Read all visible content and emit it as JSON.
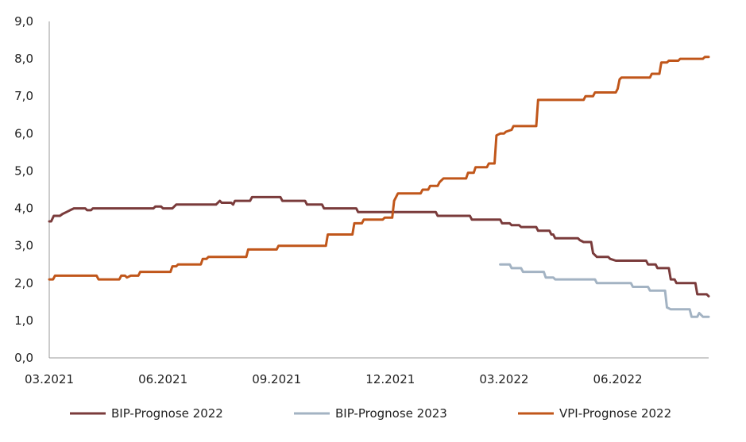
{
  "chart_data": {
    "type": "line",
    "title": "",
    "xlabel": "",
    "ylabel": "",
    "ylim": [
      0,
      9
    ],
    "grid": false,
    "legend_position": "bottom",
    "y_ticks": [
      "0,0",
      "1,0",
      "2,0",
      "3,0",
      "4,0",
      "5,0",
      "6,0",
      "7,0",
      "8,0",
      "9,0"
    ],
    "x_ticks": [
      {
        "label": "03.2021",
        "t": 0
      },
      {
        "label": "06.2021",
        "t": 3
      },
      {
        "label": "09.2021",
        "t": 6
      },
      {
        "label": "12.2021",
        "t": 9
      },
      {
        "label": "03.2022",
        "t": 12
      },
      {
        "label": "06.2022",
        "t": 15
      }
    ],
    "x_range_months": [
      0,
      17.4
    ],
    "series": [
      {
        "name": "BIP-Prognose 2022",
        "color": "#7a3b3b",
        "points": [
          [
            0.0,
            3.65
          ],
          [
            0.05,
            3.65
          ],
          [
            0.12,
            3.8
          ],
          [
            0.28,
            3.8
          ],
          [
            0.35,
            3.85
          ],
          [
            0.45,
            3.9
          ],
          [
            0.55,
            3.95
          ],
          [
            0.65,
            4.0
          ],
          [
            0.95,
            4.0
          ],
          [
            1.0,
            3.95
          ],
          [
            1.1,
            3.95
          ],
          [
            1.15,
            4.0
          ],
          [
            2.75,
            4.0
          ],
          [
            2.8,
            4.05
          ],
          [
            2.95,
            4.05
          ],
          [
            3.0,
            4.0
          ],
          [
            3.25,
            4.0
          ],
          [
            3.35,
            4.1
          ],
          [
            4.4,
            4.1
          ],
          [
            4.5,
            4.2
          ],
          [
            4.55,
            4.15
          ],
          [
            4.8,
            4.15
          ],
          [
            4.85,
            4.1
          ],
          [
            4.9,
            4.2
          ],
          [
            5.3,
            4.2
          ],
          [
            5.35,
            4.3
          ],
          [
            6.1,
            4.3
          ],
          [
            6.15,
            4.2
          ],
          [
            6.75,
            4.2
          ],
          [
            6.8,
            4.1
          ],
          [
            7.2,
            4.1
          ],
          [
            7.25,
            4.0
          ],
          [
            8.1,
            4.0
          ],
          [
            8.15,
            3.9
          ],
          [
            10.2,
            3.9
          ],
          [
            10.25,
            3.8
          ],
          [
            11.1,
            3.8
          ],
          [
            11.15,
            3.7
          ],
          [
            11.9,
            3.7
          ],
          [
            11.95,
            3.6
          ],
          [
            12.15,
            3.6
          ],
          [
            12.2,
            3.55
          ],
          [
            12.4,
            3.55
          ],
          [
            12.45,
            3.5
          ],
          [
            12.85,
            3.5
          ],
          [
            12.9,
            3.4
          ],
          [
            13.2,
            3.4
          ],
          [
            13.25,
            3.3
          ],
          [
            13.3,
            3.3
          ],
          [
            13.35,
            3.2
          ],
          [
            13.95,
            3.2
          ],
          [
            14.0,
            3.15
          ],
          [
            14.1,
            3.1
          ],
          [
            14.3,
            3.1
          ],
          [
            14.35,
            2.8
          ],
          [
            14.45,
            2.7
          ],
          [
            14.75,
            2.7
          ],
          [
            14.8,
            2.65
          ],
          [
            14.95,
            2.6
          ],
          [
            15.75,
            2.6
          ],
          [
            15.8,
            2.5
          ],
          [
            16.0,
            2.5
          ],
          [
            16.05,
            2.4
          ],
          [
            16.35,
            2.4
          ],
          [
            16.4,
            2.1
          ],
          [
            16.5,
            2.1
          ],
          [
            16.55,
            2.0
          ],
          [
            17.05,
            2.0
          ],
          [
            17.1,
            1.7
          ],
          [
            17.35,
            1.7
          ],
          [
            17.4,
            1.65
          ]
        ]
      },
      {
        "name": "BIP-Prognose 2023",
        "color": "#a3b3c3",
        "points": [
          [
            11.9,
            2.5
          ],
          [
            12.15,
            2.5
          ],
          [
            12.2,
            2.4
          ],
          [
            12.45,
            2.4
          ],
          [
            12.5,
            2.3
          ],
          [
            13.05,
            2.3
          ],
          [
            13.1,
            2.15
          ],
          [
            13.3,
            2.15
          ],
          [
            13.35,
            2.1
          ],
          [
            14.4,
            2.1
          ],
          [
            14.45,
            2.0
          ],
          [
            15.35,
            2.0
          ],
          [
            15.4,
            1.9
          ],
          [
            15.8,
            1.9
          ],
          [
            15.85,
            1.8
          ],
          [
            16.25,
            1.8
          ],
          [
            16.3,
            1.35
          ],
          [
            16.4,
            1.3
          ],
          [
            16.9,
            1.3
          ],
          [
            16.95,
            1.1
          ],
          [
            17.1,
            1.1
          ],
          [
            17.15,
            1.2
          ],
          [
            17.25,
            1.1
          ],
          [
            17.4,
            1.1
          ]
        ]
      },
      {
        "name": "VPI-Prognose 2022",
        "color": "#c0561a",
        "points": [
          [
            0.0,
            2.1
          ],
          [
            0.1,
            2.1
          ],
          [
            0.15,
            2.2
          ],
          [
            1.25,
            2.2
          ],
          [
            1.3,
            2.1
          ],
          [
            1.85,
            2.1
          ],
          [
            1.9,
            2.2
          ],
          [
            2.0,
            2.2
          ],
          [
            2.05,
            2.15
          ],
          [
            2.15,
            2.2
          ],
          [
            2.35,
            2.2
          ],
          [
            2.4,
            2.3
          ],
          [
            3.2,
            2.3
          ],
          [
            3.25,
            2.45
          ],
          [
            3.35,
            2.45
          ],
          [
            3.4,
            2.5
          ],
          [
            4.0,
            2.5
          ],
          [
            4.05,
            2.65
          ],
          [
            4.15,
            2.65
          ],
          [
            4.2,
            2.7
          ],
          [
            5.2,
            2.7
          ],
          [
            5.25,
            2.9
          ],
          [
            6.0,
            2.9
          ],
          [
            6.05,
            3.0
          ],
          [
            7.3,
            3.0
          ],
          [
            7.35,
            3.3
          ],
          [
            8.0,
            3.3
          ],
          [
            8.05,
            3.6
          ],
          [
            8.25,
            3.6
          ],
          [
            8.3,
            3.7
          ],
          [
            8.8,
            3.7
          ],
          [
            8.85,
            3.75
          ],
          [
            9.05,
            3.75
          ],
          [
            9.1,
            4.2
          ],
          [
            9.2,
            4.4
          ],
          [
            9.8,
            4.4
          ],
          [
            9.85,
            4.5
          ],
          [
            10.0,
            4.5
          ],
          [
            10.05,
            4.6
          ],
          [
            10.25,
            4.6
          ],
          [
            10.3,
            4.7
          ],
          [
            10.4,
            4.8
          ],
          [
            11.0,
            4.8
          ],
          [
            11.05,
            4.95
          ],
          [
            11.2,
            4.95
          ],
          [
            11.25,
            5.1
          ],
          [
            11.55,
            5.1
          ],
          [
            11.6,
            5.2
          ],
          [
            11.75,
            5.2
          ],
          [
            11.8,
            5.95
          ],
          [
            11.9,
            6.0
          ],
          [
            12.0,
            6.0
          ],
          [
            12.05,
            6.05
          ],
          [
            12.2,
            6.1
          ],
          [
            12.25,
            6.2
          ],
          [
            12.85,
            6.2
          ],
          [
            12.9,
            6.9
          ],
          [
            14.1,
            6.9
          ],
          [
            14.15,
            7.0
          ],
          [
            14.35,
            7.0
          ],
          [
            14.4,
            7.1
          ],
          [
            14.95,
            7.1
          ],
          [
            15.0,
            7.2
          ],
          [
            15.05,
            7.45
          ],
          [
            15.1,
            7.5
          ],
          [
            15.85,
            7.5
          ],
          [
            15.9,
            7.6
          ],
          [
            16.1,
            7.6
          ],
          [
            16.15,
            7.9
          ],
          [
            16.3,
            7.9
          ],
          [
            16.35,
            7.95
          ],
          [
            16.6,
            7.95
          ],
          [
            16.65,
            8.0
          ],
          [
            17.25,
            8.0
          ],
          [
            17.3,
            8.05
          ],
          [
            17.4,
            8.05
          ]
        ]
      }
    ]
  }
}
